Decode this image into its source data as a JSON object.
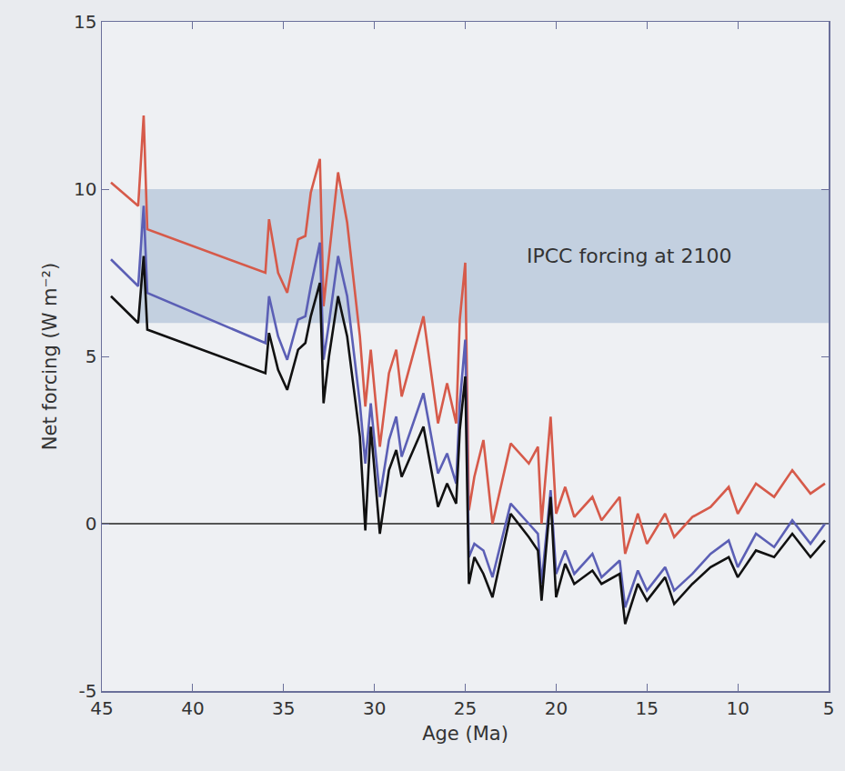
{
  "chart_data": {
    "type": "line",
    "xlabel": "Age (Ma)",
    "ylabel": "Net forcing (W m⁻²)",
    "xlim": [
      45,
      5
    ],
    "xticks": [
      45,
      40,
      35,
      30,
      25,
      20,
      15,
      10,
      5
    ],
    "ylim": [
      -5,
      15
    ],
    "yticks": [
      -5,
      0,
      5,
      10,
      15
    ],
    "grid": false,
    "x": [
      44.5,
      43,
      42.7,
      42.5,
      36,
      35.8,
      35.3,
      34.8,
      34.2,
      33.8,
      33.5,
      33,
      32.8,
      32.5,
      32,
      31.5,
      30.8,
      30.5,
      30.2,
      29.7,
      29.2,
      28.8,
      28.5,
      27.3,
      26.5,
      26,
      25.5,
      25.3,
      25,
      24.8,
      24.5,
      24,
      23.5,
      22.5,
      21.5,
      21,
      20.8,
      20.3,
      20,
      19.5,
      19,
      18,
      17.5,
      16.5,
      16.2,
      15.5,
      15,
      14,
      13.5,
      12.5,
      11.5,
      10.5,
      10,
      9,
      8,
      7,
      6,
      5.2
    ],
    "series": [
      {
        "color": "#d65a4a",
        "values": [
          10.2,
          9.5,
          12.2,
          8.8,
          7.5,
          9.1,
          7.5,
          6.9,
          8.5,
          8.6,
          9.9,
          10.9,
          6.5,
          8.0,
          10.5,
          9.0,
          5.6,
          3.5,
          5.2,
          2.3,
          4.5,
          5.2,
          3.8,
          6.2,
          3.0,
          4.2,
          3.0,
          6.1,
          7.8,
          0.4,
          1.4,
          2.5,
          0.0,
          2.4,
          1.8,
          2.3,
          0.0,
          3.2,
          0.3,
          1.1,
          0.2,
          0.8,
          0.1,
          0.8,
          -0.9,
          0.3,
          -0.6,
          0.3,
          -0.4,
          0.2,
          0.5,
          1.1,
          0.3,
          1.2,
          0.8,
          1.6,
          0.9,
          1.2
        ]
      },
      {
        "color": "#5b5fb5",
        "values": [
          7.9,
          7.1,
          9.5,
          6.9,
          5.4,
          6.8,
          5.6,
          4.9,
          6.1,
          6.2,
          7.1,
          8.4,
          4.9,
          6.0,
          8.0,
          6.8,
          3.6,
          1.8,
          3.6,
          0.8,
          2.5,
          3.2,
          2.0,
          3.9,
          1.5,
          2.1,
          1.2,
          3.6,
          5.5,
          -1.0,
          -0.6,
          -0.8,
          -1.6,
          0.6,
          0.0,
          -0.3,
          -1.8,
          1.0,
          -1.5,
          -0.8,
          -1.5,
          -0.9,
          -1.6,
          -1.1,
          -2.5,
          -1.4,
          -2.0,
          -1.3,
          -2.0,
          -1.5,
          -0.9,
          -0.5,
          -1.3,
          -0.3,
          -0.7,
          0.1,
          -0.6,
          0.0
        ]
      },
      {
        "color": "#111111",
        "values": [
          6.8,
          6.0,
          8.0,
          5.8,
          4.5,
          5.7,
          4.6,
          4.0,
          5.2,
          5.4,
          6.2,
          7.2,
          3.6,
          5.0,
          6.8,
          5.6,
          2.6,
          -0.2,
          2.9,
          -0.3,
          1.6,
          2.2,
          1.4,
          2.9,
          0.5,
          1.2,
          0.6,
          2.8,
          4.4,
          -1.8,
          -1.0,
          -1.5,
          -2.2,
          0.3,
          -0.4,
          -0.8,
          -2.3,
          0.8,
          -2.2,
          -1.2,
          -1.8,
          -1.4,
          -1.8,
          -1.5,
          -3.0,
          -1.8,
          -2.3,
          -1.6,
          -2.4,
          -1.8,
          -1.3,
          -1.0,
          -1.6,
          -0.8,
          -1.0,
          -0.3,
          -1.0,
          -0.5
        ]
      }
    ],
    "annotations": [
      {
        "text": "IPCC forcing at 2100",
        "x": 16,
        "y": 8,
        "band_x": [
          42.9,
          5
        ],
        "band_y": [
          6,
          10
        ],
        "color": "#b4c6da"
      }
    ]
  }
}
